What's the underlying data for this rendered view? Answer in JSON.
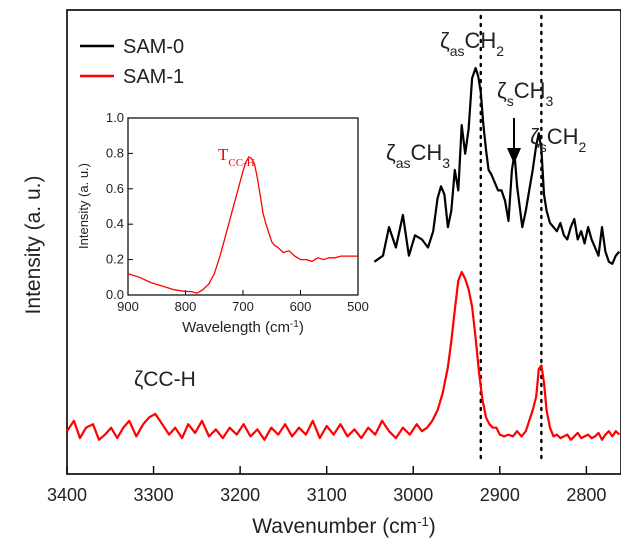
{
  "chart_data": [
    {
      "type": "line",
      "xlabel": "Wavenumber (cm",
      "xlabel_sup": "-1",
      "xlabel_end": ")",
      "ylabel": "Intensity (a. u.)",
      "xlim": [
        3400,
        2760
      ],
      "x_reversed": true,
      "x_ticks": [
        3400,
        3300,
        3200,
        3100,
        3000,
        2900,
        2800
      ],
      "y_ticks_shown": false,
      "legend_position": "top-left",
      "series": [
        {
          "name": "SAM-0",
          "color": "#000000",
          "x": [
            3045,
            3035,
            3028,
            3020,
            3012,
            3005,
            2998,
            2990,
            2983,
            2977,
            2972,
            2968,
            2964,
            2960,
            2956,
            2952,
            2948,
            2944,
            2940,
            2936,
            2932,
            2928,
            2925,
            2922,
            2919,
            2916,
            2913,
            2910,
            2906,
            2902,
            2898,
            2894,
            2890,
            2886,
            2883,
            2880,
            2877,
            2874,
            2870,
            2866,
            2862,
            2858,
            2855,
            2852,
            2849,
            2846,
            2842,
            2838,
            2834,
            2830,
            2826,
            2822,
            2818,
            2814,
            2810,
            2806,
            2802,
            2798,
            2794,
            2790,
            2786,
            2782,
            2778,
            2774,
            2770,
            2766,
            2762
          ],
          "y": [
            0.05,
            0.08,
            0.22,
            0.12,
            0.28,
            0.08,
            0.18,
            0.16,
            0.12,
            0.2,
            0.36,
            0.42,
            0.38,
            0.22,
            0.3,
            0.5,
            0.4,
            0.72,
            0.58,
            0.7,
            0.95,
            1.0,
            0.96,
            0.88,
            0.72,
            0.6,
            0.5,
            0.48,
            0.44,
            0.4,
            0.4,
            0.35,
            0.25,
            0.5,
            0.58,
            0.42,
            0.32,
            0.22,
            0.3,
            0.4,
            0.5,
            0.62,
            0.68,
            0.6,
            0.38,
            0.3,
            0.24,
            0.22,
            0.2,
            0.24,
            0.18,
            0.16,
            0.22,
            0.26,
            0.16,
            0.2,
            0.14,
            0.22,
            0.16,
            0.12,
            0.08,
            0.22,
            0.1,
            0.05,
            0.04,
            0.08,
            0.1
          ]
        },
        {
          "name": "SAM-1",
          "color": "#ff0000",
          "x": [
            3400,
            3392,
            3385,
            3378,
            3370,
            3363,
            3356,
            3349,
            3342,
            3335,
            3328,
            3320,
            3312,
            3305,
            3298,
            3290,
            3282,
            3275,
            3267,
            3260,
            3252,
            3244,
            3236,
            3228,
            3220,
            3212,
            3204,
            3196,
            3188,
            3180,
            3172,
            3164,
            3156,
            3148,
            3140,
            3132,
            3124,
            3116,
            3108,
            3100,
            3092,
            3084,
            3076,
            3068,
            3060,
            3052,
            3044,
            3036,
            3028,
            3020,
            3012,
            3004,
            2996,
            2990,
            2984,
            2978,
            2972,
            2966,
            2960,
            2956,
            2952,
            2948,
            2944,
            2940,
            2936,
            2932,
            2928,
            2924,
            2920,
            2916,
            2912,
            2908,
            2904,
            2900,
            2895,
            2890,
            2885,
            2880,
            2875,
            2870,
            2866,
            2862,
            2858,
            2855,
            2852,
            2849,
            2846,
            2842,
            2838,
            2834,
            2830,
            2826,
            2822,
            2818,
            2814,
            2810,
            2806,
            2802,
            2798,
            2794,
            2790,
            2786,
            2782,
            2778,
            2774,
            2770,
            2766,
            2762
          ],
          "y": [
            0.08,
            0.14,
            0.04,
            0.1,
            0.12,
            0.03,
            0.06,
            0.1,
            0.04,
            0.1,
            0.14,
            0.05,
            0.12,
            0.16,
            0.18,
            0.12,
            0.06,
            0.1,
            0.04,
            0.12,
            0.07,
            0.14,
            0.05,
            0.09,
            0.04,
            0.1,
            0.06,
            0.12,
            0.05,
            0.09,
            0.03,
            0.1,
            0.06,
            0.12,
            0.05,
            0.1,
            0.06,
            0.14,
            0.04,
            0.11,
            0.06,
            0.12,
            0.05,
            0.09,
            0.04,
            0.1,
            0.06,
            0.14,
            0.08,
            0.04,
            0.1,
            0.06,
            0.12,
            0.08,
            0.1,
            0.14,
            0.2,
            0.3,
            0.45,
            0.6,
            0.78,
            0.95,
            1.0,
            0.96,
            0.9,
            0.8,
            0.62,
            0.42,
            0.26,
            0.16,
            0.12,
            0.1,
            0.1,
            0.06,
            0.05,
            0.06,
            0.05,
            0.08,
            0.05,
            0.08,
            0.14,
            0.2,
            0.28,
            0.44,
            0.46,
            0.36,
            0.2,
            0.1,
            0.05,
            0.06,
            0.04,
            0.05,
            0.06,
            0.03,
            0.05,
            0.07,
            0.04,
            0.05,
            0.06,
            0.04,
            0.05,
            0.07,
            0.03,
            0.06,
            0.08,
            0.05,
            0.08,
            0.06
          ]
        }
      ],
      "annotations": [
        {
          "label": "ζ",
          "sub": "as",
          "rest": "CH",
          "rest_sub": "2",
          "x": 2930
        },
        {
          "label": "ζ",
          "sub": "s",
          "rest": "CH",
          "rest_sub": "3",
          "x": 2880
        },
        {
          "label": "ζ",
          "sub": "s",
          "rest": "CH",
          "rest_sub": "2",
          "x": 2852
        },
        {
          "label": "ζ",
          "sub": "as",
          "rest": "CH",
          "rest_sub": "3",
          "x": 3015
        },
        {
          "label": "ζCC-H",
          "x": 3300
        }
      ],
      "reference_lines_x": [
        2922,
        2852
      ]
    },
    {
      "type": "line",
      "role": "inset",
      "xlabel": "Wavelength (cm",
      "xlabel_sup": "-1",
      "xlabel_end": ")",
      "ylabel": "Intensity (a. u.)",
      "xlim": [
        900,
        500
      ],
      "ylim": [
        0.0,
        1.0
      ],
      "x_reversed": true,
      "x_ticks": [
        900,
        800,
        700,
        600,
        500
      ],
      "y_ticks": [
        0.0,
        0.2,
        0.4,
        0.6,
        0.8,
        1.0
      ],
      "annotation": {
        "label": "T",
        "sub": "CC-H",
        "color": "#ff0000",
        "x": 680
      },
      "series": [
        {
          "color": "#ff0000",
          "x": [
            900,
            880,
            860,
            840,
            820,
            800,
            790,
            780,
            770,
            760,
            750,
            740,
            730,
            720,
            710,
            700,
            695,
            690,
            685,
            680,
            675,
            670,
            665,
            660,
            655,
            650,
            645,
            640,
            630,
            620,
            610,
            600,
            590,
            580,
            570,
            560,
            550,
            540,
            530,
            520,
            510,
            500
          ],
          "y": [
            0.12,
            0.1,
            0.07,
            0.05,
            0.03,
            0.02,
            0.02,
            0.01,
            0.03,
            0.06,
            0.12,
            0.22,
            0.34,
            0.46,
            0.58,
            0.7,
            0.75,
            0.78,
            0.77,
            0.74,
            0.66,
            0.56,
            0.46,
            0.4,
            0.35,
            0.3,
            0.28,
            0.27,
            0.24,
            0.25,
            0.22,
            0.2,
            0.2,
            0.19,
            0.21,
            0.2,
            0.21,
            0.21,
            0.22,
            0.22,
            0.22,
            0.22
          ]
        }
      ]
    }
  ]
}
